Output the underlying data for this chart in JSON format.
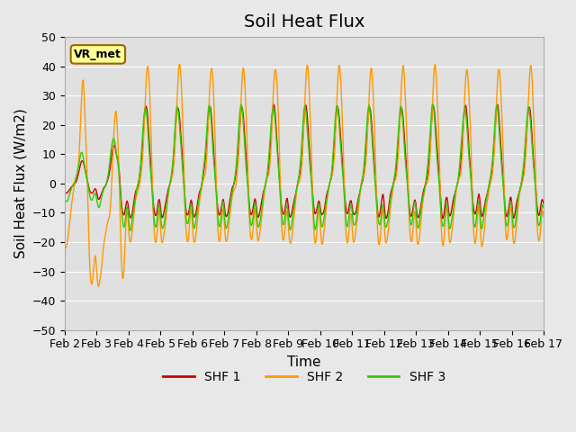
{
  "title": "Soil Heat Flux",
  "xlabel": "Time",
  "ylabel": "Soil Heat Flux (W/m2)",
  "ylim": [
    -50,
    50
  ],
  "yticks": [
    -50,
    -40,
    -30,
    -20,
    -10,
    0,
    10,
    20,
    30,
    40,
    50
  ],
  "xtick_labels": [
    "Feb 2",
    "Feb 3",
    "Feb 4",
    "Feb 5",
    "Feb 6",
    "Feb 7",
    "Feb 8",
    "Feb 9",
    "Feb 10",
    "Feb 11",
    "Feb 12",
    "Feb 13",
    "Feb 14",
    "Feb 15",
    "Feb 16",
    "Feb 17"
  ],
  "legend_labels": [
    "SHF 1",
    "SHF 2",
    "SHF 3"
  ],
  "colors": {
    "SHF1": "#cc0000",
    "SHF2": "#ff9900",
    "SHF3": "#33cc00"
  },
  "background_color": "#e8e8e8",
  "plot_bg_color": "#e0e0e0",
  "annotation_text": "VR_met",
  "annotation_bg": "#ffff99",
  "annotation_border": "#996600",
  "grid_color": "#ffffff",
  "title_fontsize": 14,
  "label_fontsize": 11,
  "tick_fontsize": 9
}
